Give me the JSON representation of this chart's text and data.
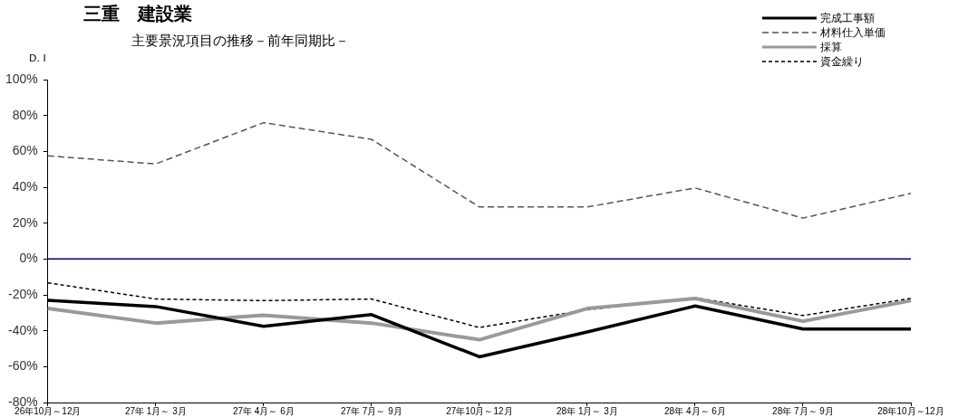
{
  "chart_data": {
    "type": "line",
    "title": "三重　建設業",
    "subtitle": "主要景況項目の推移－前年同期比－",
    "ylabel": "D. I",
    "categories": [
      "26年10月～12月",
      "27年 1月～ 3月",
      "27年 4月～ 6月",
      "27年 7月～ 9月",
      "27年10月～12月",
      "28年 1月～ 3月",
      "28年 4月～ 6月",
      "28年 7月～ 9月",
      "28年10月～12月"
    ],
    "series": [
      {
        "name": "完成工事額",
        "color": "#000000",
        "line_style": "solid",
        "values": [
          -23,
          -26.5,
          -37.5,
          -31,
          -54.5,
          -40.7,
          -26.2,
          -39,
          -39
        ]
      },
      {
        "name": "材料仕入単価",
        "color": "#555555",
        "line_style": "dashed",
        "values": [
          57.5,
          53,
          76,
          66.7,
          29,
          29,
          39.6,
          22.8,
          36.6
        ]
      },
      {
        "name": "採算",
        "color": "#999999",
        "line_style": "solid",
        "values": [
          -27.6,
          -35.7,
          -31.3,
          -35.7,
          -45,
          -27.6,
          -22,
          -34.7,
          -23.2
        ]
      },
      {
        "name": "資金繰り",
        "color": "#000000",
        "line_style": "dotted",
        "values": [
          -13.3,
          -22.3,
          -23.2,
          -22.3,
          -38.2,
          -28.3,
          -21.6,
          -31.5,
          -22
        ]
      }
    ],
    "ylim": [
      -80,
      100
    ],
    "yticks": [
      {
        "value": -80,
        "label": "-80%"
      },
      {
        "value": -60,
        "label": "-60%"
      },
      {
        "value": -40,
        "label": "-40%"
      },
      {
        "value": -20,
        "label": "-20%"
      },
      {
        "value": 0,
        "label": "0%"
      },
      {
        "value": 20,
        "label": "20%"
      },
      {
        "value": 40,
        "label": "40%"
      },
      {
        "value": 60,
        "label": "60%"
      },
      {
        "value": 80,
        "label": "80%"
      },
      {
        "value": 100,
        "label": "100%"
      }
    ],
    "ref_lines": [
      {
        "axis": "y",
        "value": 0,
        "color": "#000080"
      }
    ],
    "grid": false,
    "legend": "top right",
    "marker": "none"
  }
}
